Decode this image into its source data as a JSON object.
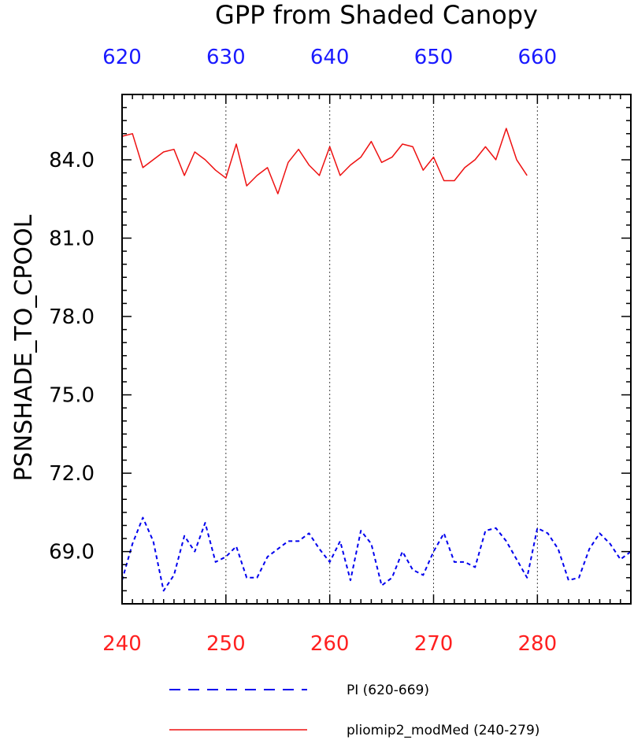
{
  "chart_data": {
    "type": "line",
    "title": "GPP from Shaded Canopy",
    "ylabel": "PSNSHADE_TO_CPOOL",
    "xlabel": "",
    "ylim": [
      67.0,
      86.5
    ],
    "yticks": [
      "84.0",
      "81.0",
      "78.0",
      "75.0",
      "72.0",
      "69.0"
    ],
    "ytick_values": [
      84.0,
      81.0,
      78.0,
      75.0,
      72.0,
      69.0
    ],
    "x_bottom": {
      "range": [
        240,
        289
      ],
      "ticks": [
        "240",
        "250",
        "260",
        "270",
        "280"
      ],
      "tick_values": [
        240,
        250,
        260,
        270,
        280
      ],
      "color": "#ff2020"
    },
    "x_top": {
      "range": [
        620,
        669
      ],
      "ticks": [
        "620",
        "630",
        "640",
        "650",
        "660"
      ],
      "tick_values": [
        620,
        630,
        640,
        650,
        660
      ],
      "color": "#1a1aff"
    },
    "grid": "vertical dotted at major bottom ticks",
    "legend_position": "bottom",
    "series": [
      {
        "name": "PI (620-669)",
        "axis": "top",
        "color": "#0000ee",
        "style": "dashed",
        "x": [
          620,
          621,
          622,
          623,
          624,
          625,
          626,
          627,
          628,
          629,
          630,
          631,
          632,
          633,
          634,
          635,
          636,
          637,
          638,
          639,
          640,
          641,
          642,
          643,
          644,
          645,
          646,
          647,
          648,
          649,
          650,
          651,
          652,
          653,
          654,
          655,
          656,
          657,
          658,
          659,
          660,
          661,
          662,
          663,
          664,
          665,
          666,
          667,
          668,
          669
        ],
        "values": [
          67.9,
          69.3,
          70.3,
          69.4,
          67.5,
          68.1,
          69.6,
          69.0,
          70.1,
          68.6,
          68.8,
          69.2,
          68.0,
          68.0,
          68.8,
          69.1,
          69.4,
          69.4,
          69.7,
          69.1,
          68.6,
          69.4,
          67.9,
          69.8,
          69.3,
          67.7,
          68.0,
          69.0,
          68.3,
          68.1,
          69.0,
          69.7,
          68.6,
          68.6,
          68.4,
          69.8,
          69.9,
          69.4,
          68.7,
          68.0,
          69.9,
          69.7,
          69.1,
          67.9,
          68.0,
          69.1,
          69.7,
          69.3,
          68.7,
          69.0
        ]
      },
      {
        "name": "pliomip2_modMed (240-279)",
        "axis": "bottom",
        "color": "#ee1111",
        "style": "solid",
        "x": [
          240,
          241,
          242,
          243,
          244,
          245,
          246,
          247,
          248,
          249,
          250,
          251,
          252,
          253,
          254,
          255,
          256,
          257,
          258,
          259,
          260,
          261,
          262,
          263,
          264,
          265,
          266,
          267,
          268,
          269,
          270,
          271,
          272,
          273,
          274,
          275,
          276,
          277,
          278,
          279
        ],
        "values": [
          84.9,
          85.0,
          83.7,
          84.0,
          84.3,
          84.4,
          83.4,
          84.3,
          84.0,
          83.6,
          83.3,
          84.6,
          83.0,
          83.4,
          83.7,
          82.7,
          83.9,
          84.4,
          83.8,
          83.4,
          84.5,
          83.4,
          83.8,
          84.1,
          84.7,
          83.9,
          84.1,
          84.6,
          84.5,
          83.6,
          84.1,
          83.2,
          83.2,
          83.7,
          84.0,
          84.5,
          84.0,
          85.2,
          84.0,
          83.4
        ]
      }
    ]
  }
}
